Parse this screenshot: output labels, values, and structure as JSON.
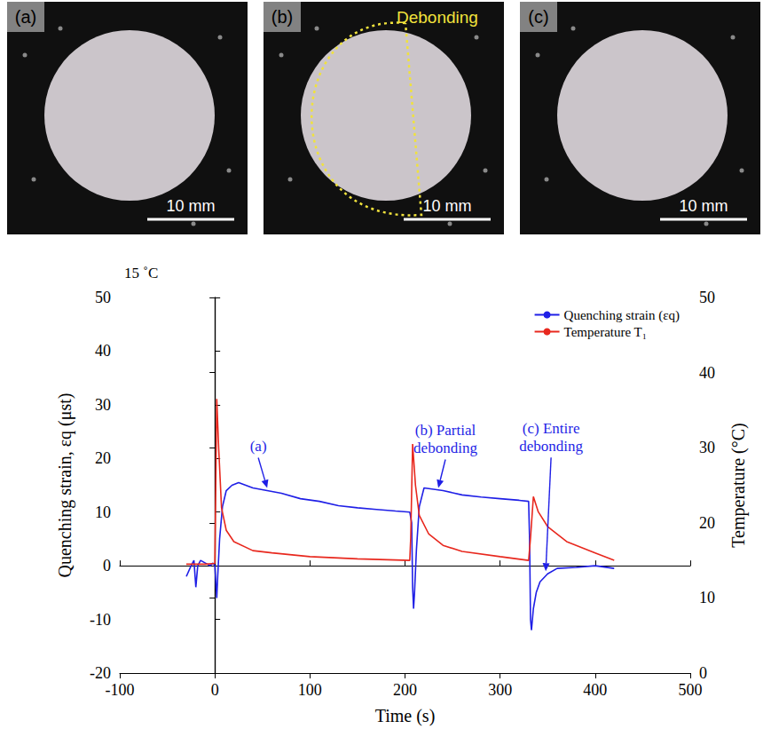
{
  "panels": [
    {
      "label": "(a)",
      "scale_bar": "10 mm"
    },
    {
      "label": "(b)",
      "annotation": "Debonding",
      "scale_bar": "10 mm"
    },
    {
      "label": "(c)",
      "scale_bar": "10 mm"
    }
  ],
  "chart_data": {
    "type": "line",
    "subtitle": "15 ˚C",
    "x_label": "Time (s)",
    "y_label": "Quenching strain, εq (μst)",
    "y2_label": "Temperature (°C)",
    "xlim": [
      -100,
      500
    ],
    "xticks": [
      -100,
      0,
      100,
      200,
      300,
      400,
      500
    ],
    "ylim": [
      -20,
      50
    ],
    "yticks": [
      -20,
      -10,
      0,
      10,
      20,
      30,
      40,
      50
    ],
    "y2lim": [
      0,
      50
    ],
    "y2ticks": [
      0,
      10,
      20,
      30,
      40,
      50
    ],
    "grid": false,
    "legend": "upper right",
    "series": [
      {
        "name": "Quenching strain (εq)",
        "color": "#1f1fe6",
        "x": [
          -30,
          -25,
          -22,
          -20,
          -18,
          -15,
          -10,
          -5,
          -2,
          0,
          1,
          2,
          3,
          5,
          8,
          12,
          18,
          25,
          40,
          55,
          70,
          90,
          110,
          130,
          150,
          170,
          190,
          205,
          207,
          208,
          209,
          210,
          212,
          215,
          220,
          240,
          260,
          280,
          300,
          320,
          330,
          331,
          332,
          333,
          335,
          338,
          342,
          350,
          360,
          380,
          400,
          420
        ],
        "values": [
          -2,
          0,
          1,
          -4,
          0,
          1,
          0.5,
          0,
          0.5,
          0,
          -3,
          -6,
          -2,
          5,
          11,
          14,
          15,
          15.5,
          14.5,
          14,
          13.5,
          12.5,
          12,
          11.2,
          10.8,
          10.5,
          10.2,
          10,
          8,
          -4,
          -8,
          -5,
          3,
          11,
          14.5,
          14,
          13.2,
          12.8,
          12.5,
          12.2,
          12,
          5,
          -10,
          -12,
          -8,
          -5,
          -3,
          -1.5,
          -0.5,
          -0.3,
          0,
          -0.5
        ]
      },
      {
        "name": "Temperature T₁",
        "color": "#e8281e",
        "axis": "y2",
        "x": [
          -30,
          -10,
          0,
          1,
          2,
          4,
          7,
          12,
          20,
          40,
          60,
          100,
          150,
          205,
          206,
          208,
          211,
          215,
          225,
          240,
          260,
          300,
          330,
          332,
          335,
          340,
          350,
          370,
          400,
          420
        ],
        "values": [
          14.5,
          14.5,
          14.6,
          25,
          36.5,
          30,
          22,
          19,
          17.5,
          16.3,
          16,
          15.5,
          15.2,
          15,
          18,
          30.5,
          25,
          21,
          18.5,
          17,
          16.2,
          15.5,
          15,
          18,
          23.5,
          21.5,
          19.5,
          17.5,
          16,
          15
        ]
      }
    ],
    "annotations": [
      {
        "text": "(a)",
        "x": 55,
        "y": 14.5
      },
      {
        "text": "(b) Partial debonding",
        "x": 235,
        "y": 14.5
      },
      {
        "text": "(c) Entire debonding",
        "x": 348,
        "y": -1
      }
    ]
  }
}
